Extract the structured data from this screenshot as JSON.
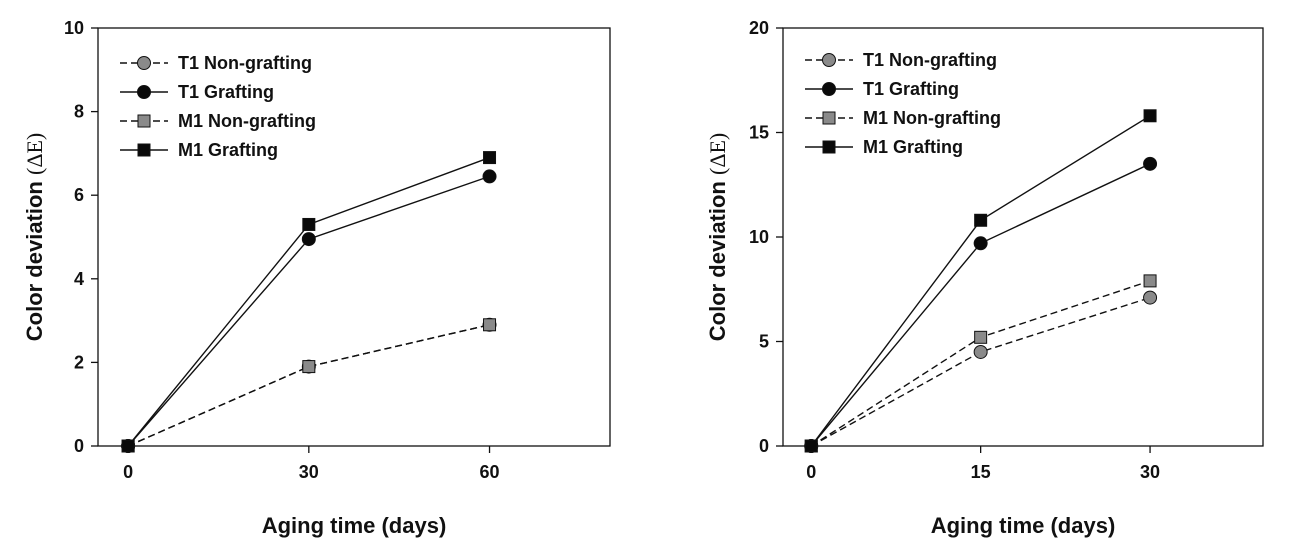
{
  "chart_data": [
    {
      "type": "line",
      "xlabel": "Aging time (days)",
      "ylabel_main": "Color deviation ",
      "ylabel_symbol": "(ΔE)",
      "x": [
        0,
        30,
        60
      ],
      "xlim": [
        -5,
        80
      ],
      "xticks": [
        0,
        30,
        60
      ],
      "ylim": [
        0,
        10
      ],
      "yticks": [
        0,
        2,
        4,
        6,
        8,
        10
      ],
      "legend": "top-left",
      "grid": false,
      "series": [
        {
          "name": "T1 Non-grafting",
          "values": [
            0,
            1.9,
            2.9
          ],
          "marker": "circle",
          "fill": "#8a8a8a",
          "dashed": true
        },
        {
          "name": "T1 Grafting",
          "values": [
            0,
            4.95,
            6.45
          ],
          "marker": "circle",
          "fill": "#0a0a0a",
          "dashed": false
        },
        {
          "name": "M1 Non-grafting",
          "values": [
            0,
            1.9,
            2.9
          ],
          "marker": "square",
          "fill": "#8a8a8a",
          "dashed": true
        },
        {
          "name": "M1 Grafting",
          "values": [
            0,
            5.3,
            6.9
          ],
          "marker": "square",
          "fill": "#0a0a0a",
          "dashed": false
        }
      ]
    },
    {
      "type": "line",
      "xlabel": "Aging time (days)",
      "ylabel_main": "Color deviation ",
      "ylabel_symbol": "(ΔE)",
      "x": [
        0,
        15,
        30
      ],
      "xlim": [
        -2.5,
        40
      ],
      "xticks": [
        0,
        15,
        30
      ],
      "ylim": [
        0,
        20
      ],
      "yticks": [
        0,
        5,
        10,
        15,
        20
      ],
      "legend": "top-left",
      "grid": false,
      "series": [
        {
          "name": "T1 Non-grafting",
          "values": [
            0,
            4.5,
            7.1
          ],
          "marker": "circle",
          "fill": "#8a8a8a",
          "dashed": true
        },
        {
          "name": "T1 Grafting",
          "values": [
            0,
            9.7,
            13.5
          ],
          "marker": "circle",
          "fill": "#0a0a0a",
          "dashed": false
        },
        {
          "name": "M1 Non-grafting",
          "values": [
            0,
            5.2,
            7.9
          ],
          "marker": "square",
          "fill": "#8a8a8a",
          "dashed": true
        },
        {
          "name": "M1 Grafting",
          "values": [
            0,
            10.8,
            15.8
          ],
          "marker": "square",
          "fill": "#0a0a0a",
          "dashed": false
        }
      ]
    }
  ]
}
